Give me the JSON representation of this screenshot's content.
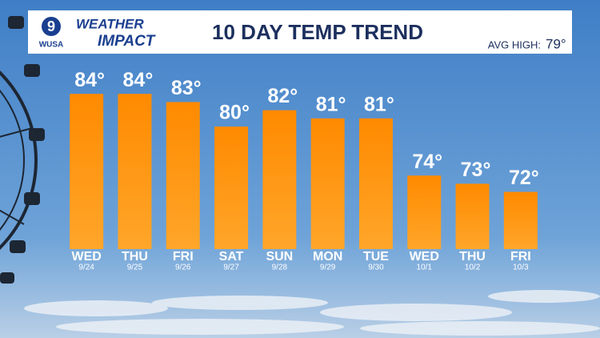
{
  "logo": {
    "number": "9",
    "station": "WUSA",
    "brand_top": "WEATHER",
    "brand_bottom": "IMPACT"
  },
  "avg_high": {
    "label": "AVG HIGH:",
    "value": "79°"
  },
  "chart_data": {
    "type": "bar",
    "title": "10 DAY TEMP TREND",
    "categories": [
      "WED",
      "THU",
      "FRI",
      "SAT",
      "SUN",
      "MON",
      "TUE",
      "WED",
      "THU",
      "FRI"
    ],
    "dates": [
      "9/24",
      "9/25",
      "9/26",
      "9/27",
      "9/28",
      "9/29",
      "9/30",
      "10/1",
      "10/2",
      "10/3"
    ],
    "values": [
      84,
      84,
      83,
      80,
      82,
      81,
      81,
      74,
      73,
      72
    ],
    "value_labels": [
      "84°",
      "84°",
      "83°",
      "80°",
      "82°",
      "81°",
      "81°",
      "74°",
      "73°",
      "72°"
    ],
    "color": "#ff8a00",
    "ylim": [
      65,
      85
    ]
  }
}
